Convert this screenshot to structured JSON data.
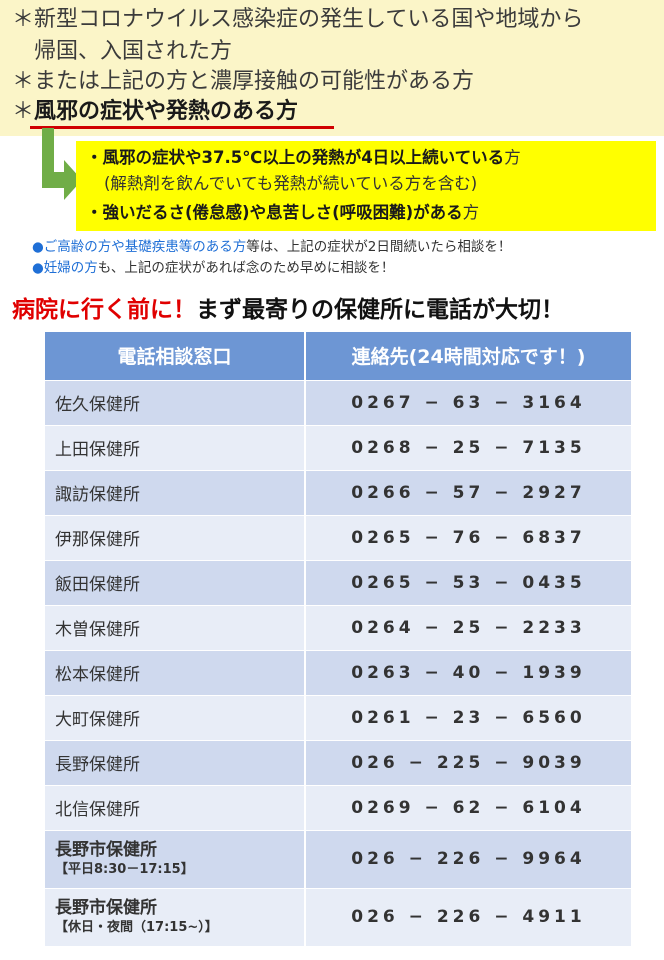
{
  "criteria": {
    "line1": "新型コロナウイルス感染症の発生している国や地域から",
    "line1b": "帰国、入国された方",
    "line2": "または上記の方と濃厚接触の可能性がある方",
    "line3": "風邪の症状や発熱のある方",
    "star": "＊"
  },
  "symptoms": {
    "item1_bold": "・風邪の症状や37.5℃以上の発熱が4日以上続いている",
    "item1_plain": "方",
    "item1_sub": "(解熱剤を飲んでいても発熱が続いている方を含む)",
    "item2_bold": "・強いだるさ(倦怠感)や息苦しさ(呼吸困難)がある",
    "item2_plain": "方"
  },
  "notes": {
    "bullet": "●",
    "note1_hl": "ご高齢の方や基礎疾患等のある方",
    "note1_rest": "等は、上記の症状が2日間続いたら相談を！",
    "note2_hl": "妊婦の方",
    "note2_rest": "も、上記の症状があれば念のため早めに相談を！"
  },
  "headline": {
    "red": "病院に行く前に！",
    "black": "まず最寄りの保健所に電話が大切！"
  },
  "table": {
    "col_office": "電話相談窓口",
    "col_phone": "連絡先(24時間対応です！)",
    "rows": [
      {
        "name": "佐久保健所",
        "phone": "0267 − 63 − 3164"
      },
      {
        "name": "上田保健所",
        "phone": "0268 − 25 − 7135"
      },
      {
        "name": "諏訪保健所",
        "phone": "0266 − 57 − 2927"
      },
      {
        "name": "伊那保健所",
        "phone": "0265 − 76 − 6837"
      },
      {
        "name": "飯田保健所",
        "phone": "0265 − 53 − 0435"
      },
      {
        "name": "木曽保健所",
        "phone": "0264 − 25 − 2233"
      },
      {
        "name": "松本保健所",
        "phone": "0263 − 40 − 1939"
      },
      {
        "name": "大町保健所",
        "phone": "0261 − 23 − 6560"
      },
      {
        "name": "長野保健所",
        "phone": "026 − 225 − 9039"
      },
      {
        "name": "北信保健所",
        "phone": "0269 − 62 − 6104"
      }
    ],
    "city_weekday": {
      "name": "長野市保健所",
      "hours": "【平日8:30－17:15】",
      "phone": "026 − 226 − 9964"
    },
    "city_holiday": {
      "name": "長野市保健所",
      "hours": "【休日・夜間（17:15~）】",
      "phone": "026 − 226 − 4911"
    }
  }
}
